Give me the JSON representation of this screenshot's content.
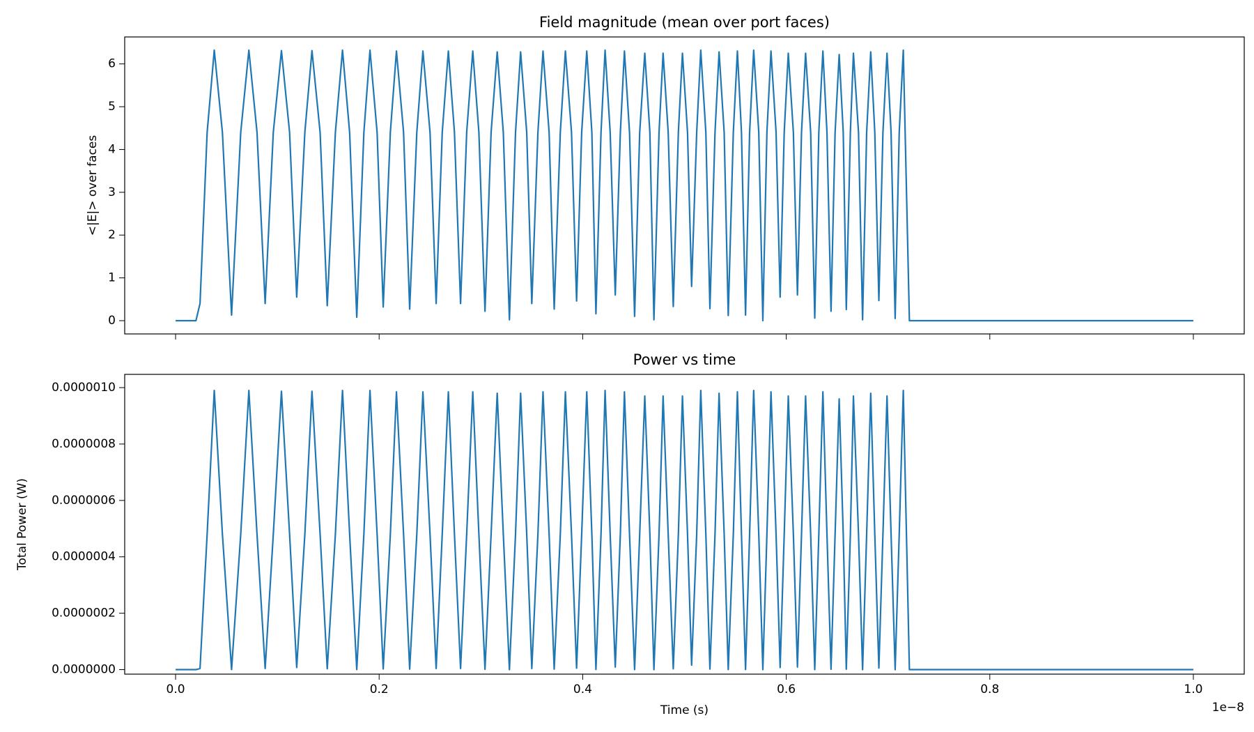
{
  "chart_data": [
    {
      "type": "line",
      "title": "Field magnitude (mean over port faces)",
      "y_label": "<|E|> over faces",
      "x": [
        0,
        0.02,
        0.024,
        0.031,
        0.038,
        0.046,
        0.055,
        0.064,
        0.072,
        0.08,
        0.088,
        0.096,
        0.104,
        0.112,
        0.119,
        0.127,
        0.134,
        0.142,
        0.149,
        0.157,
        0.164,
        0.171,
        0.178,
        0.185,
        0.191,
        0.198,
        0.204,
        0.211,
        0.217,
        0.224,
        0.23,
        0.237,
        0.243,
        0.25,
        0.256,
        0.262,
        0.268,
        0.274,
        0.28,
        0.286,
        0.292,
        0.298,
        0.304,
        0.31,
        0.316,
        0.322,
        0.328,
        0.334,
        0.339,
        0.345,
        0.35,
        0.356,
        0.361,
        0.367,
        0.372,
        0.378,
        0.383,
        0.389,
        0.394,
        0.399,
        0.404,
        0.409,
        0.413,
        0.418,
        0.422,
        0.427,
        0.432,
        0.437,
        0.441,
        0.446,
        0.451,
        0.456,
        0.461,
        0.466,
        0.47,
        0.475,
        0.479,
        0.484,
        0.489,
        0.494,
        0.498,
        0.503,
        0.507,
        0.512,
        0.516,
        0.521,
        0.525,
        0.53,
        0.534,
        0.539,
        0.543,
        0.548,
        0.552,
        0.556,
        0.56,
        0.564,
        0.568,
        0.573,
        0.577,
        0.581,
        0.585,
        0.59,
        0.594,
        0.598,
        0.602,
        0.607,
        0.611,
        0.615,
        0.619,
        0.624,
        0.628,
        0.632,
        0.636,
        0.64,
        0.644,
        0.648,
        0.652,
        0.656,
        0.659,
        0.663,
        0.666,
        0.671,
        0.675,
        0.679,
        0.683,
        0.687,
        0.691,
        0.695,
        0.699,
        0.703,
        0.707,
        0.711,
        0.715,
        0.721,
        1
      ],
      "series": [
        {
          "color": "#1f77b4",
          "values": [
            0,
            0,
            0.4,
            4.4,
            6.32,
            4.4,
            0.13,
            4.4,
            6.32,
            4.4,
            0.4,
            4.4,
            6.31,
            4.4,
            0.55,
            4.4,
            6.31,
            4.4,
            0.35,
            4.4,
            6.32,
            4.4,
            0.08,
            4.4,
            6.32,
            4.4,
            0.32,
            4.4,
            6.3,
            4.4,
            0.27,
            4.4,
            6.3,
            4.4,
            0.4,
            4.4,
            6.3,
            4.4,
            0.4,
            4.4,
            6.3,
            4.4,
            0.22,
            4.4,
            6.28,
            4.4,
            0.02,
            4.4,
            6.28,
            4.4,
            0.4,
            4.4,
            6.3,
            4.4,
            0.27,
            4.4,
            6.3,
            4.4,
            0.46,
            4.4,
            6.3,
            4.4,
            0.16,
            4.4,
            6.32,
            4.4,
            0.6,
            4.4,
            6.3,
            4.4,
            0.1,
            4.4,
            6.25,
            4.4,
            0.02,
            4.4,
            6.25,
            4.4,
            0.33,
            4.4,
            6.25,
            4.4,
            0.8,
            4.4,
            6.32,
            4.4,
            0.28,
            4.4,
            6.28,
            4.4,
            0.12,
            4.4,
            6.3,
            4.4,
            0.13,
            4.4,
            6.32,
            4.4,
            0,
            4.4,
            6.3,
            4.4,
            0.55,
            4.4,
            6.25,
            4.4,
            0.6,
            4.4,
            6.25,
            4.4,
            0.06,
            4.4,
            6.3,
            4.4,
            0.22,
            4.4,
            6.22,
            4.4,
            0.26,
            4.4,
            6.25,
            4.4,
            0.02,
            4.4,
            6.28,
            4.4,
            0.47,
            4.4,
            6.25,
            4.4,
            0.05,
            4.4,
            6.32,
            0,
            0
          ]
        }
      ],
      "xlim": [
        -0.05,
        1.05
      ],
      "xticks": [
        0,
        0.2,
        0.4,
        0.6,
        0.8,
        1
      ],
      "ylim": [
        -0.31,
        6.63
      ],
      "yticks": [
        0,
        1,
        2,
        3,
        4,
        5,
        6
      ]
    },
    {
      "type": "line",
      "title": "Power vs time",
      "x_label": "Time (s)",
      "y_label": "Total Power (W)",
      "x_offset_label": "1e−8",
      "x": [
        0,
        0.02,
        0.024,
        0.031,
        0.038,
        0.046,
        0.055,
        0.064,
        0.072,
        0.08,
        0.088,
        0.096,
        0.104,
        0.112,
        0.119,
        0.127,
        0.134,
        0.142,
        0.149,
        0.157,
        0.164,
        0.171,
        0.178,
        0.185,
        0.191,
        0.198,
        0.204,
        0.211,
        0.217,
        0.224,
        0.23,
        0.237,
        0.243,
        0.25,
        0.256,
        0.262,
        0.268,
        0.274,
        0.28,
        0.286,
        0.292,
        0.298,
        0.304,
        0.31,
        0.316,
        0.322,
        0.328,
        0.334,
        0.339,
        0.345,
        0.35,
        0.356,
        0.361,
        0.367,
        0.372,
        0.378,
        0.383,
        0.389,
        0.394,
        0.399,
        0.404,
        0.409,
        0.413,
        0.418,
        0.422,
        0.427,
        0.432,
        0.437,
        0.441,
        0.446,
        0.451,
        0.456,
        0.461,
        0.466,
        0.47,
        0.475,
        0.479,
        0.484,
        0.489,
        0.494,
        0.498,
        0.503,
        0.507,
        0.512,
        0.516,
        0.521,
        0.525,
        0.53,
        0.534,
        0.539,
        0.543,
        0.548,
        0.552,
        0.556,
        0.56,
        0.564,
        0.568,
        0.573,
        0.577,
        0.581,
        0.585,
        0.59,
        0.594,
        0.598,
        0.602,
        0.607,
        0.611,
        0.615,
        0.619,
        0.624,
        0.628,
        0.632,
        0.636,
        0.64,
        0.644,
        0.648,
        0.652,
        0.656,
        0.659,
        0.663,
        0.666,
        0.671,
        0.675,
        0.679,
        0.683,
        0.687,
        0.691,
        0.695,
        0.699,
        0.703,
        0.707,
        0.711,
        0.715,
        0.721,
        1
      ],
      "series": [
        {
          "color": "#1f77b4",
          "values": [
            0,
            0,
            4e-09,
            4.8e-07,
            9.9e-07,
            4.8e-07,
            4e-10,
            4.8e-07,
            9.9e-07,
            4.8e-07,
            4e-09,
            4.8e-07,
            9.87e-07,
            4.8e-07,
            7.5e-09,
            4.8e-07,
            9.87e-07,
            4.8e-07,
            3e-09,
            4.8e-07,
            9.9e-07,
            4.8e-07,
            2e-10,
            4.8e-07,
            9.9e-07,
            4.8e-07,
            2.5e-09,
            4.8e-07,
            9.85e-07,
            4.8e-07,
            1.8e-09,
            4.8e-07,
            9.85e-07,
            4.8e-07,
            4e-09,
            4.8e-07,
            9.85e-07,
            4.8e-07,
            4e-09,
            4.8e-07,
            9.85e-07,
            4.8e-07,
            1.2e-09,
            4.8e-07,
            9.8e-07,
            4.8e-07,
            0,
            4.8e-07,
            9.8e-07,
            4.8e-07,
            4e-09,
            4.8e-07,
            9.85e-07,
            4.8e-07,
            1.8e-09,
            4.8e-07,
            9.85e-07,
            4.8e-07,
            5.2e-09,
            4.8e-07,
            9.85e-07,
            4.8e-07,
            6e-10,
            4.8e-07,
            9.9e-07,
            4.8e-07,
            9e-09,
            4.8e-07,
            9.85e-07,
            4.8e-07,
            2.5e-10,
            4.8e-07,
            9.7e-07,
            4.8e-07,
            0,
            4.8e-07,
            9.7e-07,
            4.8e-07,
            2.7e-09,
            4.8e-07,
            9.7e-07,
            4.8e-07,
            1.6e-08,
            4.8e-07,
            9.9e-07,
            4.8e-07,
            1.9e-09,
            4.8e-07,
            9.8e-07,
            4.8e-07,
            3.6e-10,
            4.8e-07,
            9.85e-07,
            4.8e-07,
            4e-10,
            4.8e-07,
            9.9e-07,
            4.8e-07,
            0,
            4.8e-07,
            9.85e-07,
            4.8e-07,
            7.5e-09,
            4.8e-07,
            9.7e-07,
            4.8e-07,
            9e-09,
            4.8e-07,
            9.7e-07,
            4.8e-07,
            1e-10,
            4.8e-07,
            9.85e-07,
            4.8e-07,
            1.2e-09,
            4.8e-07,
            9.6e-07,
            4.8e-07,
            1.7e-09,
            4.8e-07,
            9.7e-07,
            4.8e-07,
            0,
            4.8e-07,
            9.8e-07,
            4.8e-07,
            5.5e-09,
            4.8e-07,
            9.7e-07,
            4.8e-07,
            0,
            4.8e-07,
            9.9e-07,
            0,
            0
          ]
        }
      ],
      "xlim": [
        -0.05,
        1.05
      ],
      "xticks": [
        {
          "value": 0,
          "label": "0.0"
        },
        0.2,
        0.4,
        0.6,
        0.8,
        {
          "value": 1,
          "label": "1.0"
        }
      ],
      "ylim": [
        -1.6e-08,
        1.047e-06
      ],
      "yticks": [
        {
          "value": 0,
          "label": "0.0000000"
        },
        {
          "value": 2e-07,
          "label": "0.0000002"
        },
        {
          "value": 4e-07,
          "label": "0.0000004"
        },
        {
          "value": 6e-07,
          "label": "0.0000006"
        },
        {
          "value": 8e-07,
          "label": "0.0000008"
        },
        {
          "value": 1e-06,
          "label": "0.0000010"
        }
      ]
    }
  ]
}
